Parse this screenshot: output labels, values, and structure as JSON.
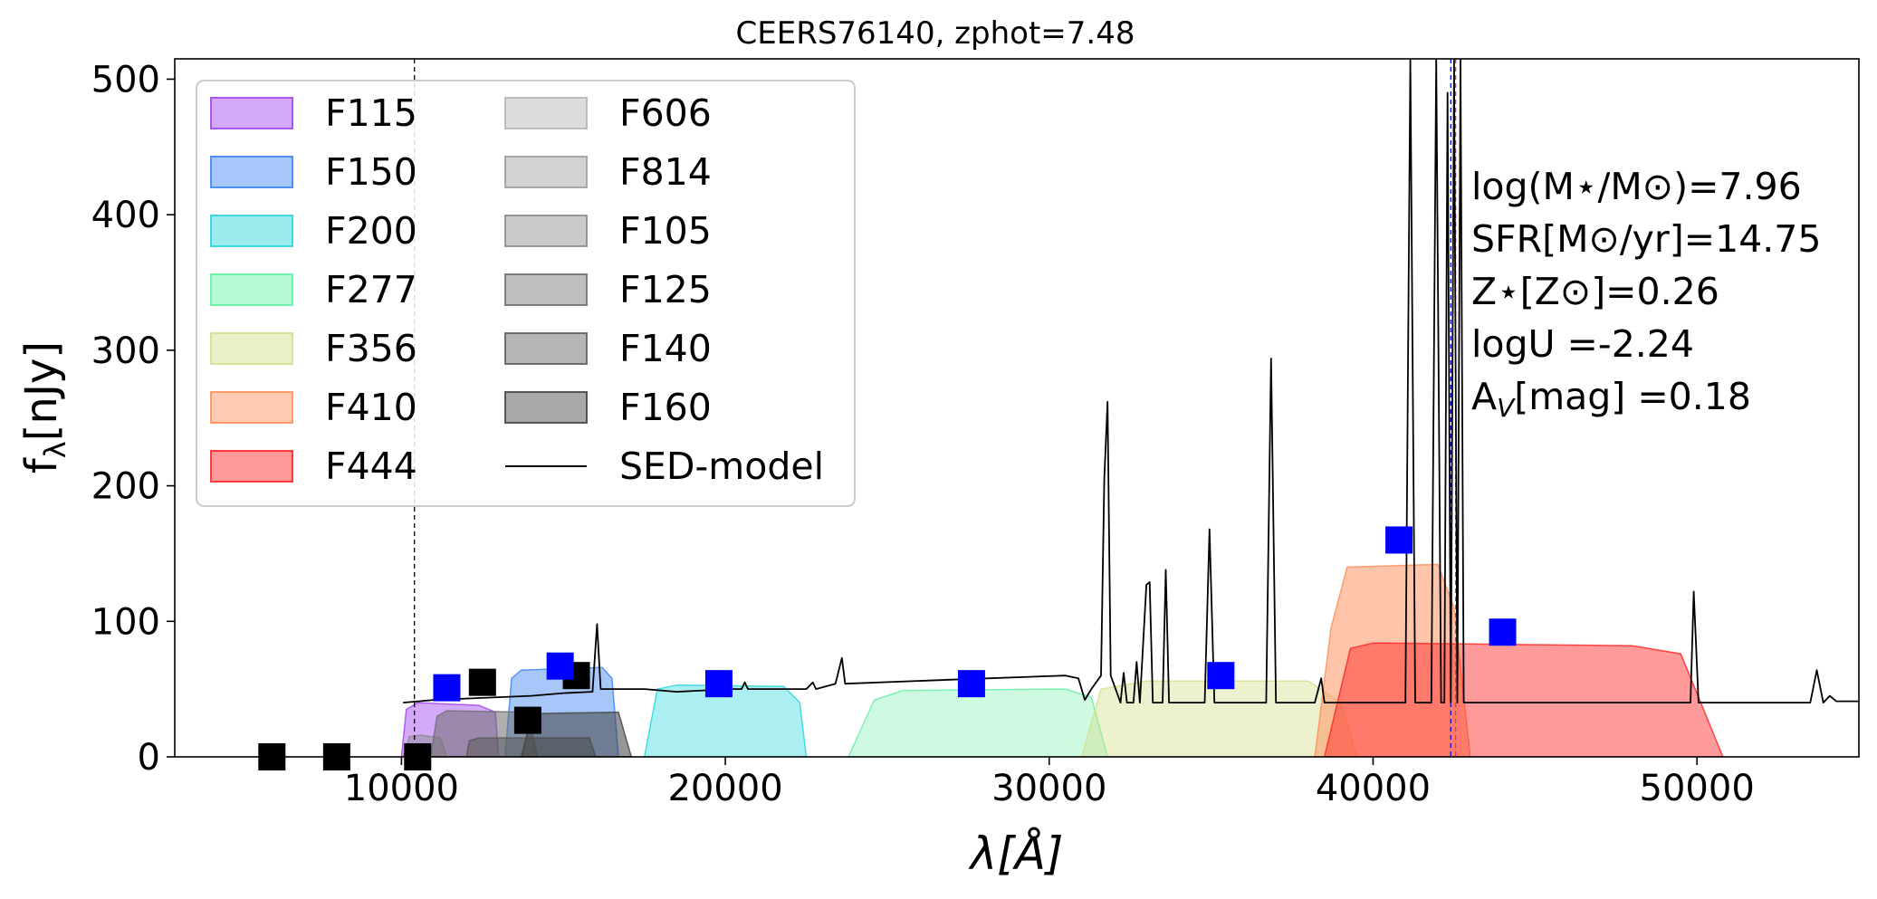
{
  "chart_data": {
    "type": "line",
    "title": "CEERS76140, zphot=7.48",
    "xlabel": "λ[Å]",
    "ylabel": "fλ[nJy]",
    "xlim": [
      3000,
      55000
    ],
    "ylim": [
      0,
      515
    ],
    "xticks": [
      10000,
      20000,
      30000,
      40000,
      50000
    ],
    "yticks": [
      0,
      100,
      200,
      300,
      400,
      500
    ],
    "grid": false,
    "legend_location": "top-left",
    "legend": [
      {
        "label": "F115",
        "color": "#a040f0",
        "kind": "filter"
      },
      {
        "label": "F150",
        "color": "#3a82f0",
        "kind": "filter"
      },
      {
        "label": "F200",
        "color": "#22d4dc",
        "kind": "filter"
      },
      {
        "label": "F277",
        "color": "#5ef0a0",
        "kind": "filter"
      },
      {
        "label": "F356",
        "color": "#d4de8a",
        "kind": "filter"
      },
      {
        "label": "F410",
        "color": "#ff8c55",
        "kind": "filter"
      },
      {
        "label": "F444",
        "color": "#ff2020",
        "kind": "filter"
      },
      {
        "label": "F606",
        "color": "#b4b4b4",
        "kind": "filter"
      },
      {
        "label": "F814",
        "color": "#9c9c9c",
        "kind": "filter"
      },
      {
        "label": "F105",
        "color": "#8a8a8a",
        "kind": "filter"
      },
      {
        "label": "F125",
        "color": "#6e6e6e",
        "kind": "filter"
      },
      {
        "label": "F140",
        "color": "#5a5a5a",
        "kind": "filter"
      },
      {
        "label": "F160",
        "color": "#404040",
        "kind": "filter"
      },
      {
        "label": "SED-model",
        "color": "#000000",
        "kind": "line"
      }
    ],
    "filter_bands": [
      {
        "name": "F115",
        "color": "#a040f0",
        "opacity": 0.45,
        "points": [
          [
            10000,
            0
          ],
          [
            10150,
            35
          ],
          [
            10500,
            40
          ],
          [
            12400,
            38
          ],
          [
            12900,
            33
          ],
          [
            13000,
            0
          ]
        ]
      },
      {
        "name": "F150",
        "color": "#3a82f0",
        "opacity": 0.45,
        "points": [
          [
            13200,
            0
          ],
          [
            13400,
            58
          ],
          [
            13700,
            64
          ],
          [
            16200,
            66
          ],
          [
            16500,
            58
          ],
          [
            16700,
            0
          ]
        ]
      },
      {
        "name": "F200",
        "color": "#22d4dc",
        "opacity": 0.38,
        "points": [
          [
            17500,
            0
          ],
          [
            17900,
            50
          ],
          [
            18500,
            53
          ],
          [
            21800,
            52
          ],
          [
            22300,
            40
          ],
          [
            22500,
            0
          ]
        ]
      },
      {
        "name": "F277",
        "color": "#5ef0a0",
        "opacity": 0.3,
        "points": [
          [
            23800,
            0
          ],
          [
            24600,
            42
          ],
          [
            25500,
            49
          ],
          [
            30500,
            50
          ],
          [
            31300,
            44
          ],
          [
            31800,
            0
          ]
        ]
      },
      {
        "name": "F356",
        "color": "#d4de8a",
        "opacity": 0.42,
        "points": [
          [
            31000,
            0
          ],
          [
            31600,
            50
          ],
          [
            33000,
            56
          ],
          [
            38000,
            56
          ],
          [
            39000,
            40
          ],
          [
            39500,
            0
          ]
        ]
      },
      {
        "name": "F410",
        "color": "#ff8c55",
        "opacity": 0.5,
        "points": [
          [
            38200,
            0
          ],
          [
            38700,
            95
          ],
          [
            39200,
            140
          ],
          [
            42000,
            142
          ],
          [
            42500,
            110
          ],
          [
            43000,
            0
          ]
        ]
      },
      {
        "name": "F444",
        "color": "#ff2020",
        "opacity": 0.45,
        "points": [
          [
            38500,
            0
          ],
          [
            39300,
            80
          ],
          [
            40000,
            84
          ],
          [
            48000,
            82
          ],
          [
            49500,
            76
          ],
          [
            50800,
            0
          ]
        ]
      },
      {
        "name": "F606",
        "color": "#b4b4b4",
        "opacity": 0.45,
        "points": []
      },
      {
        "name": "F814",
        "color": "#9c9c9c",
        "opacity": 0.45,
        "points": []
      },
      {
        "name": "F105",
        "color": "#8a8a8a",
        "opacity": 0.45,
        "points": [
          [
            10050,
            0
          ],
          [
            10250,
            15
          ],
          [
            10600,
            16
          ],
          [
            11200,
            14
          ],
          [
            11400,
            0
          ]
        ]
      },
      {
        "name": "F125",
        "color": "#6e6e6e",
        "opacity": 0.55,
        "points": [
          [
            10900,
            0
          ],
          [
            11100,
            30
          ],
          [
            11400,
            34
          ],
          [
            13900,
            33
          ],
          [
            14200,
            0
          ]
        ]
      },
      {
        "name": "F140",
        "color": "#5a5a5a",
        "opacity": 0.55,
        "points": [
          [
            12000,
            0
          ],
          [
            12100,
            12
          ],
          [
            12400,
            14
          ],
          [
            15800,
            14
          ],
          [
            16000,
            0
          ]
        ]
      },
      {
        "name": "F160",
        "color": "#404040",
        "opacity": 0.55,
        "points": [
          [
            13700,
            0
          ],
          [
            14000,
            28
          ],
          [
            14300,
            32
          ],
          [
            16700,
            33
          ],
          [
            17100,
            0
          ]
        ]
      }
    ],
    "sed_model": [
      [
        10050,
        40
      ],
      [
        11000,
        42
      ],
      [
        12000,
        43
      ],
      [
        13000,
        44
      ],
      [
        14000,
        45
      ],
      [
        15000,
        47
      ],
      [
        15900,
        48
      ],
      [
        16040,
        98
      ],
      [
        16150,
        50
      ],
      [
        17500,
        50
      ],
      [
        18500,
        48
      ],
      [
        20200,
        50
      ],
      [
        20500,
        50
      ],
      [
        20600,
        55
      ],
      [
        20700,
        50
      ],
      [
        22500,
        50
      ],
      [
        22700,
        55
      ],
      [
        22800,
        50
      ],
      [
        23400,
        54
      ],
      [
        23600,
        73
      ],
      [
        23700,
        54
      ],
      [
        27000,
        57
      ],
      [
        30500,
        60
      ],
      [
        30900,
        58
      ],
      [
        31100,
        42
      ],
      [
        31300,
        50
      ],
      [
        31600,
        60
      ],
      [
        31700,
        205
      ],
      [
        31800,
        262
      ],
      [
        31900,
        60
      ],
      [
        32200,
        40
      ],
      [
        32300,
        62
      ],
      [
        32400,
        40
      ],
      [
        32600,
        40
      ],
      [
        32700,
        70
      ],
      [
        32800,
        40
      ],
      [
        33000,
        127
      ],
      [
        33100,
        129
      ],
      [
        33200,
        40
      ],
      [
        33500,
        40
      ],
      [
        33600,
        138
      ],
      [
        33700,
        40
      ],
      [
        34800,
        40
      ],
      [
        34950,
        168
      ],
      [
        35100,
        40
      ],
      [
        36700,
        40
      ],
      [
        36850,
        294
      ],
      [
        37000,
        40
      ],
      [
        38200,
        40
      ],
      [
        38400,
        58
      ],
      [
        38500,
        40
      ],
      [
        41000,
        40
      ],
      [
        41150,
        515
      ],
      [
        41300,
        40
      ],
      [
        41800,
        40
      ],
      [
        41950,
        515
      ],
      [
        42100,
        40
      ],
      [
        42200,
        40
      ],
      [
        42300,
        490
      ],
      [
        42400,
        40
      ],
      [
        42500,
        515
      ],
      [
        42600,
        40
      ],
      [
        42700,
        515
      ],
      [
        42800,
        40
      ],
      [
        45000,
        40
      ],
      [
        49800,
        40
      ],
      [
        49900,
        122
      ],
      [
        50050,
        40
      ],
      [
        53500,
        40
      ],
      [
        53700,
        64
      ],
      [
        53900,
        40
      ],
      [
        54100,
        45
      ],
      [
        54300,
        41
      ],
      [
        55000,
        41
      ]
    ],
    "photometry_measured": {
      "color": "#0000ff",
      "points": [
        [
          11400,
          51
        ],
        [
          14900,
          67
        ],
        [
          19800,
          54
        ],
        [
          27600,
          54
        ],
        [
          35300,
          60
        ],
        [
          40800,
          160
        ],
        [
          44000,
          92
        ]
      ]
    },
    "photometry_model": {
      "color": "#000000",
      "points": [
        [
          6000,
          0
        ],
        [
          8000,
          0
        ],
        [
          10500,
          0
        ],
        [
          12500,
          55
        ],
        [
          13900,
          27
        ],
        [
          15400,
          60
        ]
      ]
    },
    "vertical_lines": [
      {
        "x": 10400,
        "color": "#000000"
      },
      {
        "x": 42400,
        "color": "#0000cc"
      },
      {
        "x": 42550,
        "color": "#cc4444"
      }
    ],
    "annotations": [
      "log(M⋆/M⊙)=7.96",
      "SFR[M⊙/yr]=14.75",
      "Z⋆[Z⊙]=0.26",
      "logU =-2.24",
      "AV[mag] =0.18"
    ]
  }
}
